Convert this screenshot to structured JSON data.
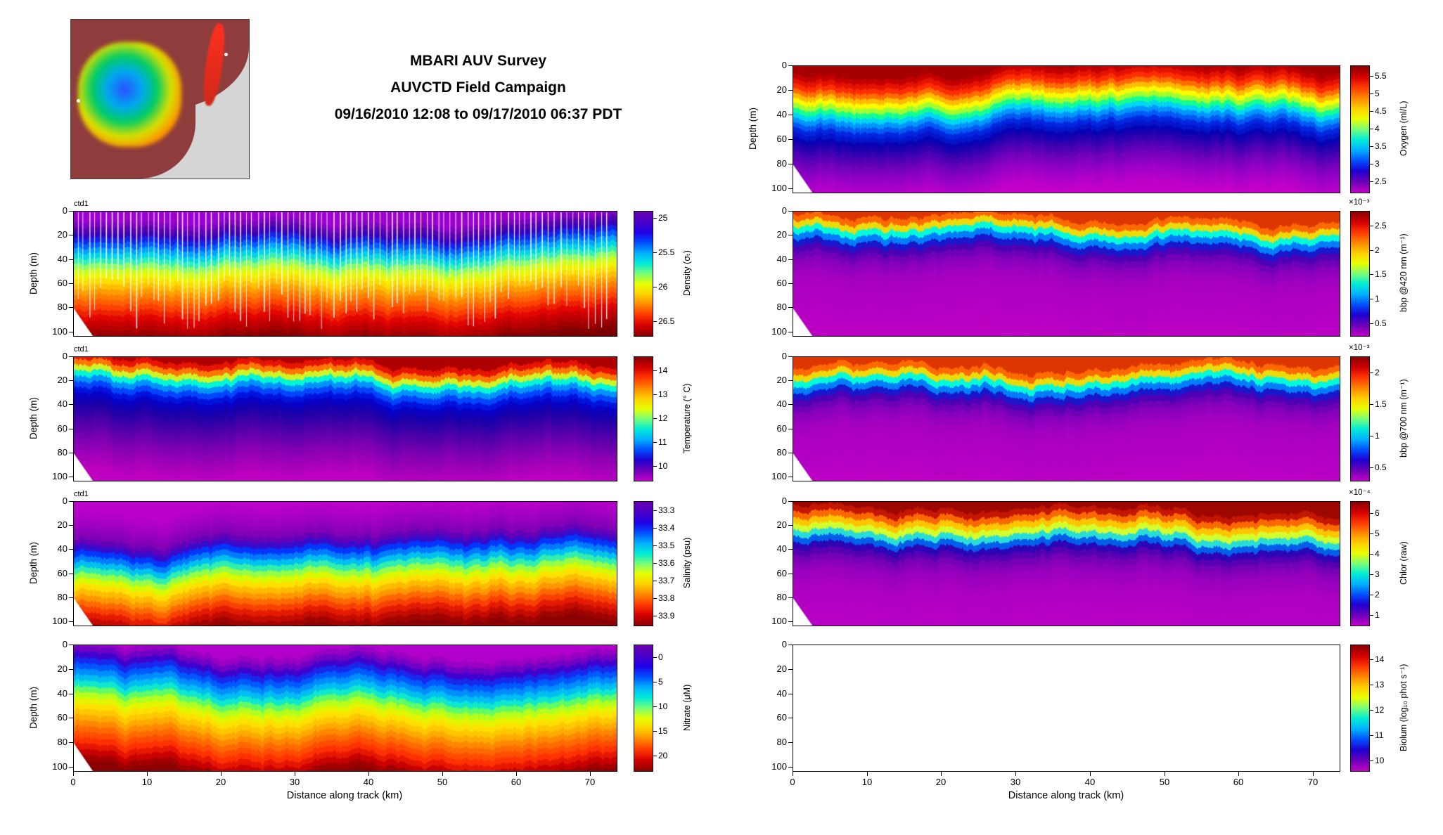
{
  "title": {
    "line1": "MBARI AUV Survey",
    "line2": "AUVCTD Field Campaign",
    "line3": "09/16/2010 12:08 to 09/17/2010 06:37 PDT"
  },
  "chart_data": {
    "type": "heatmap",
    "x": {
      "label": "Distance along track (km)",
      "ticks": [
        0,
        10,
        20,
        30,
        40,
        50,
        60,
        70
      ],
      "range_km": [
        0,
        73.5
      ]
    },
    "y": {
      "label": "Depth (m)",
      "ticks": [
        0,
        20,
        40,
        60,
        80,
        100
      ],
      "range_m": [
        0,
        103
      ]
    },
    "panels": [
      {
        "id": "density",
        "corner_label": "ctd1",
        "show_ylabel": true,
        "summary": "Density section: light purple surface water above stratified layers, dense red water below 70 m; vertical white profile lines mark CTD casts",
        "colorbar": {
          "label": "Density (σₜ)",
          "tick_values": [
            25,
            25.5,
            26,
            26.5
          ],
          "tick_labels": [
            "25",
            "25.5",
            "26",
            "26.5"
          ],
          "range": [
            24.9,
            26.7
          ],
          "exponent": null,
          "colors": [
            "#6a00b0",
            "#4800c8",
            "#2000e8",
            "#0050ff",
            "#00b0ff",
            "#00ecd8",
            "#78ff78",
            "#e8ff00",
            "#ffd000",
            "#ff8800",
            "#ff3800",
            "#d40000",
            "#8b0000"
          ]
        },
        "profile": {
          "stops": [
            [
              0.0,
              "#a800d8"
            ],
            [
              0.07,
              "#7a00c0"
            ],
            [
              0.12,
              "#4b00a8"
            ],
            [
              0.16,
              "#2a00cc"
            ],
            [
              0.21,
              "#0040ff"
            ],
            [
              0.27,
              "#00a0ff"
            ],
            [
              0.33,
              "#00e8e0"
            ],
            [
              0.4,
              "#90ff60"
            ],
            [
              0.46,
              "#e8ff00"
            ],
            [
              0.53,
              "#ffd800"
            ],
            [
              0.62,
              "#ff9000"
            ],
            [
              0.72,
              "#ff4800"
            ],
            [
              0.82,
              "#e00000"
            ],
            [
              0.92,
              "#a80000"
            ],
            [
              1.0,
              "#7a0000"
            ]
          ],
          "wiggle": 0.05,
          "levels": 24,
          "seed": 11,
          "streaks": true,
          "empty": false
        }
      },
      {
        "id": "temperature",
        "corner_label": "ctd1",
        "show_ylabel": true,
        "summary": "Temperature section: warm red surface layer (~14 °C) over sharp thermocline near 20-30 m, cold purple water (~10 °C) at depth",
        "colorbar": {
          "label": "Temperature (° C)",
          "tick_values": [
            14,
            13,
            12,
            11,
            10
          ],
          "tick_labels": [
            "14",
            "13",
            "12",
            "11",
            "10"
          ],
          "range": [
            14.6,
            9.4
          ],
          "exponent": null,
          "colors": [
            "#8b0000",
            "#d40000",
            "#ff3800",
            "#ff8800",
            "#ffd000",
            "#e8ff00",
            "#78ff78",
            "#00ecd8",
            "#00b0ff",
            "#0050ff",
            "#2000d0",
            "#6a00b8",
            "#c000c8"
          ]
        },
        "profile": {
          "stops": [
            [
              0.0,
              "#8b0000"
            ],
            [
              0.05,
              "#d40000"
            ],
            [
              0.09,
              "#ff3000"
            ],
            [
              0.12,
              "#ff8800"
            ],
            [
              0.145,
              "#ffe000"
            ],
            [
              0.17,
              "#b0ff40"
            ],
            [
              0.2,
              "#00ffd0"
            ],
            [
              0.24,
              "#00a8ff"
            ],
            [
              0.29,
              "#0048ff"
            ],
            [
              0.36,
              "#0000d0"
            ],
            [
              0.45,
              "#1800a8"
            ],
            [
              0.58,
              "#4800a8"
            ],
            [
              0.72,
              "#7800b0"
            ],
            [
              0.86,
              "#a000b8"
            ],
            [
              1.0,
              "#c000c0"
            ]
          ],
          "wiggle": 0.05,
          "levels": 22,
          "seed": 23,
          "streaks": false,
          "empty": false
        }
      },
      {
        "id": "salinity",
        "corner_label": "ctd1",
        "show_ylabel": true,
        "summary": "Salinity section: fresh purple surface layer (~33.3 psu) to 35 m, salty orange-red water (>33.8 psu) below 70 m",
        "colorbar": {
          "label": "Salinity (psu)",
          "tick_values": [
            33.3,
            33.4,
            33.5,
            33.6,
            33.7,
            33.8,
            33.9
          ],
          "tick_labels": [
            "33.3",
            "33.4",
            "33.5",
            "33.6",
            "33.7",
            "33.8",
            "33.9"
          ],
          "range": [
            33.25,
            33.95
          ],
          "exponent": null,
          "colors": [
            "#6a00b0",
            "#4800c8",
            "#2000e8",
            "#0050ff",
            "#00b0ff",
            "#00ecd8",
            "#78ff78",
            "#e8ff00",
            "#ffd000",
            "#ff8800",
            "#ff3800",
            "#d40000",
            "#8b0000"
          ]
        },
        "profile": {
          "stops": [
            [
              0.0,
              "#c000cc"
            ],
            [
              0.14,
              "#a400c4"
            ],
            [
              0.27,
              "#7c00b4"
            ],
            [
              0.33,
              "#4400c0"
            ],
            [
              0.39,
              "#0038ff"
            ],
            [
              0.45,
              "#0098ff"
            ],
            [
              0.5,
              "#00e0e0"
            ],
            [
              0.55,
              "#70ff70"
            ],
            [
              0.6,
              "#d0ff00"
            ],
            [
              0.66,
              "#ffe000"
            ],
            [
              0.74,
              "#ffa000"
            ],
            [
              0.82,
              "#ff5000"
            ],
            [
              0.9,
              "#e01000"
            ],
            [
              1.0,
              "#8b0000"
            ]
          ],
          "wiggle": 0.06,
          "levels": 22,
          "seed": 37,
          "streaks": false,
          "empty": false
        }
      },
      {
        "id": "nitrate",
        "corner_label": null,
        "show_ylabel": true,
        "summary": "Nitrate section: depleted purple surface waters (~0 μM), increasing through mid-depths to >20 μM (red) below 80 m",
        "colorbar": {
          "label": "Nitrate (μM)",
          "tick_values": [
            0,
            5,
            10,
            15,
            20
          ],
          "tick_labels": [
            "0",
            "5",
            "10",
            "15",
            "20"
          ],
          "range": [
            -2.5,
            23
          ],
          "exponent": null,
          "colors": [
            "#6a00b0",
            "#4800c8",
            "#2000e8",
            "#0050ff",
            "#00b0ff",
            "#00ecd8",
            "#78ff78",
            "#e8ff00",
            "#ffd000",
            "#ff8800",
            "#ff3800",
            "#d40000",
            "#8b0000"
          ]
        },
        "profile": {
          "stops": [
            [
              0.0,
              "#c000cc"
            ],
            [
              0.09,
              "#8800c0"
            ],
            [
              0.16,
              "#4000cc"
            ],
            [
              0.23,
              "#0040ff"
            ],
            [
              0.31,
              "#00a0ff"
            ],
            [
              0.38,
              "#00e4e0"
            ],
            [
              0.44,
              "#70ff50"
            ],
            [
              0.5,
              "#d8ff00"
            ],
            [
              0.57,
              "#ffe000"
            ],
            [
              0.65,
              "#ffb000"
            ],
            [
              0.74,
              "#ff7000"
            ],
            [
              0.84,
              "#ff3000"
            ],
            [
              0.93,
              "#cc0000"
            ],
            [
              1.0,
              "#8b0000"
            ]
          ],
          "wiggle": 0.06,
          "levels": 22,
          "seed": 51,
          "streaks": false,
          "empty": false
        }
      },
      {
        "id": "oxygen",
        "corner_label": null,
        "show_ylabel": true,
        "summary": "Oxygen section: oxygen-rich red surface layer (>5.5 ml/L) to ~30 m, low-oxygen magenta water (<2.5 ml/L) below 65 m",
        "colorbar": {
          "label": "Oxygen (ml/L)",
          "tick_values": [
            5.5,
            5,
            4.5,
            4,
            3.5,
            3,
            2.5
          ],
          "tick_labels": [
            "5.5",
            "5",
            "4.5",
            "4",
            "3.5",
            "3",
            "2.5"
          ],
          "range": [
            5.8,
            2.2
          ],
          "exponent": null,
          "colors": [
            "#8b0000",
            "#d40000",
            "#ff3800",
            "#ff8800",
            "#ffd000",
            "#e8ff00",
            "#78ff78",
            "#00ecd8",
            "#00b0ff",
            "#0050ff",
            "#2000d0",
            "#6a00b8",
            "#c000c8"
          ]
        },
        "profile": {
          "stops": [
            [
              0.0,
              "#980000"
            ],
            [
              0.07,
              "#cc0000"
            ],
            [
              0.13,
              "#ff2800"
            ],
            [
              0.18,
              "#ff7800"
            ],
            [
              0.22,
              "#ffcc00"
            ],
            [
              0.255,
              "#f8ff00"
            ],
            [
              0.29,
              "#a0ff30"
            ],
            [
              0.33,
              "#00ffa0"
            ],
            [
              0.37,
              "#00d0ff"
            ],
            [
              0.42,
              "#0078ff"
            ],
            [
              0.48,
              "#0028e0"
            ],
            [
              0.56,
              "#0800b0"
            ],
            [
              0.64,
              "#3800b0"
            ],
            [
              0.74,
              "#7000bc"
            ],
            [
              0.87,
              "#a000c8"
            ],
            [
              1.0,
              "#c400c8"
            ]
          ],
          "wiggle": 0.05,
          "levels": 26,
          "seed": 67,
          "streaks": false,
          "empty": false
        }
      },
      {
        "id": "bbp420",
        "corner_label": null,
        "show_ylabel": false,
        "summary": "Particulate backscatter at 420 nm: high (red) patchy values in upper 20 m, low uniform purple below 35 m",
        "colorbar": {
          "label": "bbp @420 nm (m⁻¹)",
          "tick_values": [
            2.5,
            2,
            1.5,
            1,
            0.5
          ],
          "tick_labels": [
            "2.5",
            "2",
            "1.5",
            "1",
            "0.5"
          ],
          "range": [
            2.8,
            0.25
          ],
          "exponent": "×10⁻³",
          "colors": [
            "#8b0000",
            "#d40000",
            "#ff3800",
            "#ff8800",
            "#ffd000",
            "#e8ff00",
            "#78ff78",
            "#00ecd8",
            "#00b0ff",
            "#0050ff",
            "#2000d0",
            "#6a00b8",
            "#c000c8"
          ]
        },
        "profile": {
          "stops": [
            [
              0.0,
              "#cc2000"
            ],
            [
              0.07,
              "#ff6000"
            ],
            [
              0.115,
              "#ffc800"
            ],
            [
              0.145,
              "#c8ff20"
            ],
            [
              0.175,
              "#00ffd8"
            ],
            [
              0.21,
              "#00a0ff"
            ],
            [
              0.25,
              "#0038f0"
            ],
            [
              0.29,
              "#2800b4"
            ],
            [
              0.34,
              "#5c00b4"
            ],
            [
              0.42,
              "#8800bc"
            ],
            [
              0.55,
              "#a800c0"
            ],
            [
              1.0,
              "#bc00c4"
            ]
          ],
          "wiggle": 0.05,
          "levels": 20,
          "seed": 79,
          "streaks": false,
          "empty": false
        }
      },
      {
        "id": "bbp700",
        "corner_label": null,
        "show_ylabel": false,
        "summary": "Particulate backscatter at 700 nm: high (red) surface values in upper 20 m, low uniform purple below 35 m",
        "colorbar": {
          "label": "bbp @700 nm (m⁻¹)",
          "tick_values": [
            2,
            1.5,
            1,
            0.5
          ],
          "tick_labels": [
            "2",
            "1.5",
            "1",
            "0.5"
          ],
          "range": [
            2.25,
            0.3
          ],
          "exponent": "×10⁻³",
          "colors": [
            "#8b0000",
            "#d40000",
            "#ff3800",
            "#ff8800",
            "#ffd000",
            "#e8ff00",
            "#78ff78",
            "#00ecd8",
            "#00b0ff",
            "#0050ff",
            "#2000d0",
            "#6a00b8",
            "#c000c8"
          ]
        },
        "profile": {
          "stops": [
            [
              0.0,
              "#cc2000"
            ],
            [
              0.07,
              "#ff6000"
            ],
            [
              0.115,
              "#ffc800"
            ],
            [
              0.145,
              "#c8ff20"
            ],
            [
              0.175,
              "#00ffd8"
            ],
            [
              0.21,
              "#00a0ff"
            ],
            [
              0.25,
              "#0038f0"
            ],
            [
              0.29,
              "#2800b4"
            ],
            [
              0.34,
              "#5c00b4"
            ],
            [
              0.42,
              "#8800bc"
            ],
            [
              0.55,
              "#a800c0"
            ],
            [
              1.0,
              "#bc00c4"
            ]
          ],
          "wiggle": 0.05,
          "levels": 20,
          "seed": 93,
          "streaks": false,
          "empty": false
        }
      },
      {
        "id": "chlor",
        "corner_label": null,
        "show_ylabel": false,
        "summary": "Raw chlorophyll fluorescence: strong dark-red surface maximum in upper 20 m, low purple background below 40 m",
        "colorbar": {
          "label": "Chlor (raw)",
          "tick_values": [
            6,
            5,
            4,
            3,
            2,
            1
          ],
          "tick_labels": [
            "6",
            "5",
            "4",
            "3",
            "2",
            "1"
          ],
          "range": [
            6.6,
            0.5
          ],
          "exponent": "×10⁻⁴",
          "colors": [
            "#8b0000",
            "#d40000",
            "#ff3800",
            "#ff8800",
            "#ffd000",
            "#e8ff00",
            "#78ff78",
            "#00ecd8",
            "#00b0ff",
            "#0050ff",
            "#2000d0",
            "#6a00b8",
            "#c000c8"
          ]
        },
        "profile": {
          "stops": [
            [
              0.0,
              "#8b0000"
            ],
            [
              0.08,
              "#c81800"
            ],
            [
              0.13,
              "#ff7000"
            ],
            [
              0.18,
              "#ffcc00"
            ],
            [
              0.22,
              "#e0ff20"
            ],
            [
              0.26,
              "#40ffc0"
            ],
            [
              0.3,
              "#00a0ff"
            ],
            [
              0.34,
              "#0038e0"
            ],
            [
              0.38,
              "#3000b0"
            ],
            [
              0.45,
              "#6c00b4"
            ],
            [
              0.55,
              "#9400bc"
            ],
            [
              0.7,
              "#ac00c0"
            ],
            [
              1.0,
              "#b800c4"
            ]
          ],
          "wiggle": 0.06,
          "levels": 20,
          "seed": 107,
          "streaks": false,
          "empty": false
        }
      },
      {
        "id": "biolum",
        "corner_label": null,
        "show_ylabel": false,
        "summary": "Bioluminescence panel: no data recorded (blank axes)",
        "colorbar": {
          "label": "Biolum (log₁₀ phot s⁻¹)",
          "tick_values": [
            14,
            13,
            12,
            11,
            10
          ],
          "tick_labels": [
            "14",
            "13",
            "12",
            "11",
            "10"
          ],
          "range": [
            14.6,
            9.6
          ],
          "exponent": null,
          "colors": [
            "#8b0000",
            "#d40000",
            "#ff3800",
            "#ff8800",
            "#ffd000",
            "#e8ff00",
            "#78ff78",
            "#00ecd8",
            "#00b0ff",
            "#0050ff",
            "#2000d0",
            "#6a00b8",
            "#c000c8"
          ]
        },
        "profile": {
          "stops": [
            [
              0.0,
              "#ffffff"
            ],
            [
              1.0,
              "#ffffff"
            ]
          ],
          "wiggle": 0,
          "levels": 2,
          "seed": 1,
          "streaks": false,
          "empty": true
        }
      }
    ]
  }
}
